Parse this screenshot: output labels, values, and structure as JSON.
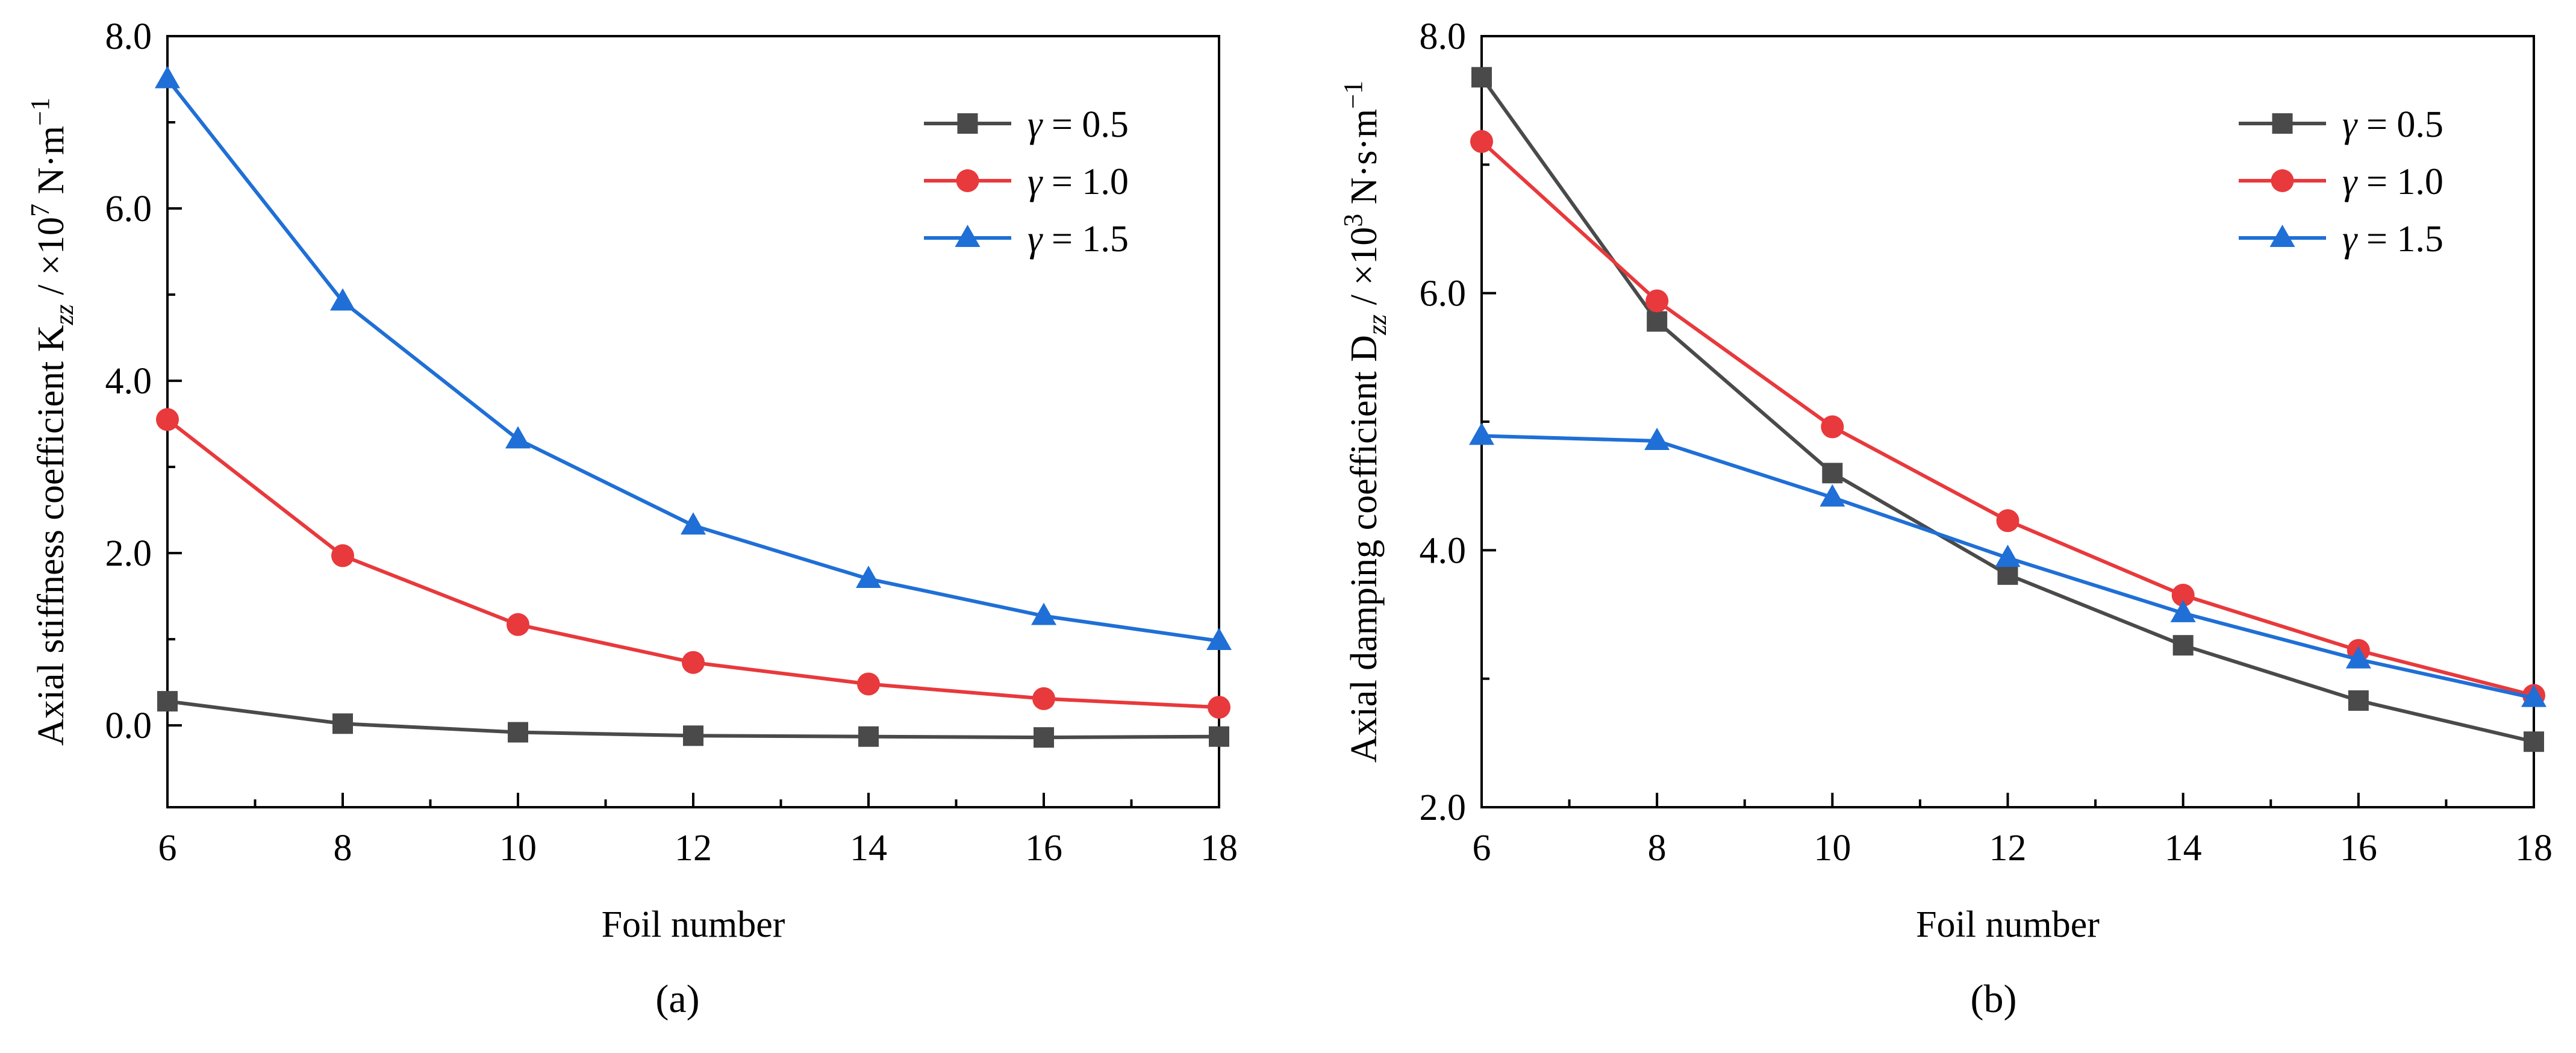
{
  "chart_data": [
    {
      "type": "line",
      "panel": "(a)",
      "xlabel": "Foil number",
      "ylabel_main": "Axial stiffness coefficient K",
      "ylabel_sub": "zz",
      "ylabel_unit": " / ×10",
      "ylabel_exp": "7",
      "ylabel_unit2": " N·m",
      "ylabel_exp2": "−1",
      "xlim": [
        6,
        18
      ],
      "ylim": [
        -0.95,
        8.0
      ],
      "xticks": [
        "6",
        "8",
        "10",
        "12",
        "14",
        "16",
        "18"
      ],
      "xtick_values": [
        6,
        8,
        10,
        12,
        14,
        16,
        18
      ],
      "yticks": [
        "0.0",
        "2.0",
        "4.0",
        "6.0",
        "8.0"
      ],
      "ytick_values": [
        0,
        2,
        4,
        6,
        8
      ],
      "grid": false,
      "legend_position": "top-right",
      "x": [
        6,
        8,
        10,
        12,
        14,
        16,
        18
      ],
      "series": [
        {
          "name_symbol": "γ",
          "name_value": " = 0.5",
          "color": "#4a4a4a",
          "marker": "square",
          "values": [
            0.28,
            0.02,
            -0.08,
            -0.12,
            -0.13,
            -0.14,
            -0.13
          ]
        },
        {
          "name_symbol": "γ",
          "name_value": " = 1.0",
          "color": "#e8393c",
          "marker": "circle",
          "values": [
            3.55,
            1.97,
            1.17,
            0.73,
            0.48,
            0.31,
            0.21
          ]
        },
        {
          "name_symbol": "γ",
          "name_value": " = 1.5",
          "color": "#1f6fd6",
          "marker": "triangle",
          "values": [
            7.5,
            4.92,
            3.32,
            2.32,
            1.7,
            1.27,
            0.98
          ]
        }
      ]
    },
    {
      "type": "line",
      "panel": "(b)",
      "xlabel": "Foil number",
      "ylabel_main": "Axial damping coefficient D",
      "ylabel_sub": "zz",
      "ylabel_unit": " / ×10",
      "ylabel_exp": "3",
      "ylabel_unit2": " N·s·m",
      "ylabel_exp2": "−1",
      "xlim": [
        6,
        18
      ],
      "ylim": [
        2.0,
        8.0
      ],
      "xticks": [
        "6",
        "8",
        "10",
        "12",
        "14",
        "16",
        "18"
      ],
      "xtick_values": [
        6,
        8,
        10,
        12,
        14,
        16,
        18
      ],
      "yticks": [
        "2.0",
        "4.0",
        "6.0",
        "8.0"
      ],
      "ytick_values": [
        2,
        4,
        6,
        8
      ],
      "grid": false,
      "legend_position": "top-right",
      "x": [
        6,
        8,
        10,
        12,
        14,
        16,
        18
      ],
      "series": [
        {
          "name_symbol": "γ",
          "name_value": " = 0.5",
          "color": "#4a4a4a",
          "marker": "square",
          "values": [
            7.68,
            5.78,
            4.6,
            3.81,
            3.26,
            2.83,
            2.51
          ]
        },
        {
          "name_symbol": "γ",
          "name_value": " = 1.0",
          "color": "#e8393c",
          "marker": "circle",
          "values": [
            7.18,
            5.94,
            4.96,
            4.23,
            3.65,
            3.22,
            2.87
          ]
        },
        {
          "name_symbol": "γ",
          "name_value": " = 1.5",
          "color": "#1f6fd6",
          "marker": "triangle",
          "values": [
            4.89,
            4.85,
            4.41,
            3.94,
            3.51,
            3.15,
            2.85
          ]
        }
      ]
    }
  ]
}
